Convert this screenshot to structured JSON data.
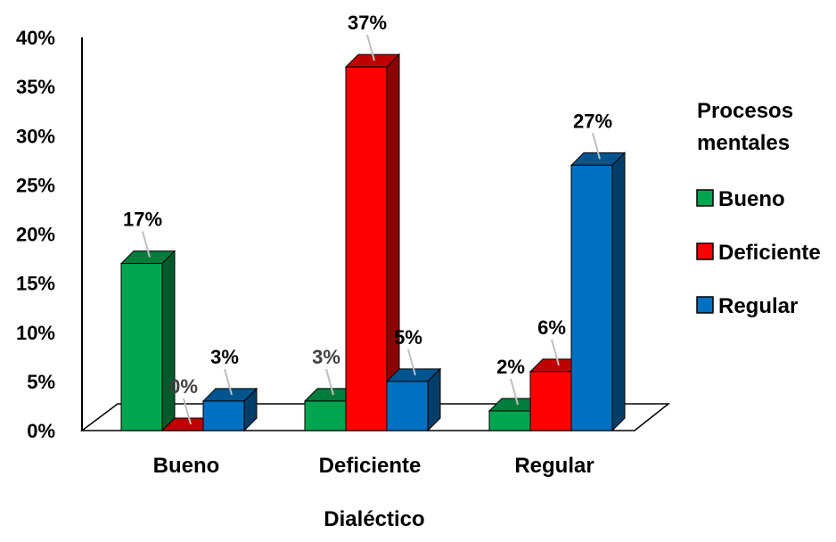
{
  "chart_data": {
    "type": "bar",
    "categories": [
      "Bueno",
      "Deficiente",
      "Regular"
    ],
    "series": [
      {
        "name": "Bueno",
        "values": [
          17,
          3,
          2
        ],
        "color": "#00A550"
      },
      {
        "name": "Deficiente",
        "values": [
          0,
          37,
          6
        ],
        "color": "#FF0000"
      },
      {
        "name": "Regular",
        "values": [
          3,
          5,
          27
        ],
        "color": "#0070C0"
      }
    ],
    "data_labels": [
      [
        "17%",
        "3%",
        "2%"
      ],
      [
        "0%",
        "37%",
        "6%"
      ],
      [
        "3%",
        "5%",
        "27%"
      ]
    ],
    "yticks": [
      "0%",
      "5%",
      "10%",
      "15%",
      "20%",
      "25%",
      "30%",
      "35%",
      "40%"
    ],
    "ylim": [
      0,
      40
    ],
    "xlabel": "Dialéctico",
    "ylabel": "",
    "legend_title": "Procesos mentales",
    "legend_placement": "right",
    "grid": false,
    "style": "3d-clustered-column"
  }
}
